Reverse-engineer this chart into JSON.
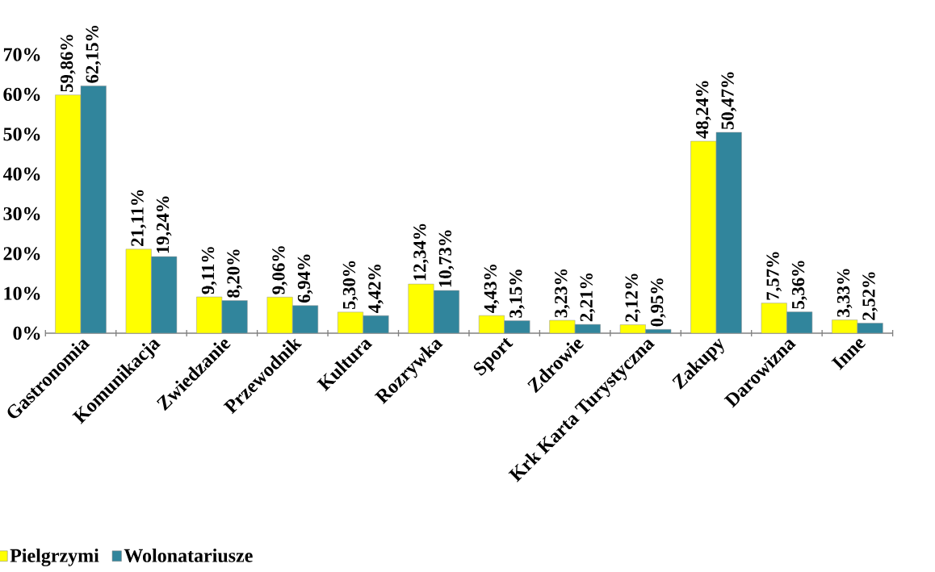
{
  "chart_data": {
    "type": "bar",
    "categories": [
      "Gastronomia",
      "Komunikacja",
      "Zwiedzanie",
      "Przewodnik",
      "Kultura",
      "Rozrywka",
      "Sport",
      "Zdrowie",
      "Krk Karta Turystyczna",
      "Zakupy",
      "Darowizna",
      "Inne"
    ],
    "series": [
      {
        "name": "Pielgrzymi",
        "color": "#ffff00",
        "values": [
          59.86,
          21.11,
          9.11,
          9.06,
          5.3,
          12.34,
          4.43,
          3.23,
          2.12,
          48.24,
          7.57,
          3.33
        ],
        "value_labels": [
          "59,86%",
          "21,11%",
          "9,11%",
          "9,06%",
          "5,30%",
          "12,34%",
          "4,43%",
          "3,23%",
          "2,12%",
          "48,24%",
          "7,57%",
          "3,33%"
        ]
      },
      {
        "name": "Wolonatariusze",
        "color": "#31859c",
        "values": [
          62.15,
          19.24,
          8.2,
          6.94,
          4.42,
          10.73,
          3.15,
          2.21,
          0.95,
          50.47,
          5.36,
          2.52
        ],
        "value_labels": [
          "62,15%",
          "19,24%",
          "8,20%",
          "6,94%",
          "4,42%",
          "10,73%",
          "3,15%",
          "2,21%",
          "0,95%",
          "50,47%",
          "5,36%",
          "2,52%"
        ]
      }
    ],
    "ylim": [
      0,
      70
    ],
    "yticks": [
      {
        "value": 0,
        "label": "0%"
      },
      {
        "value": 10,
        "label": "10%"
      },
      {
        "value": 20,
        "label": "20%"
      },
      {
        "value": 30,
        "label": "30%"
      },
      {
        "value": 40,
        "label": "40%"
      },
      {
        "value": 50,
        "label": "50%"
      },
      {
        "value": 60,
        "label": "60%"
      },
      {
        "value": 70,
        "label": "70%"
      }
    ],
    "legend": "bottom left",
    "grid": false
  }
}
